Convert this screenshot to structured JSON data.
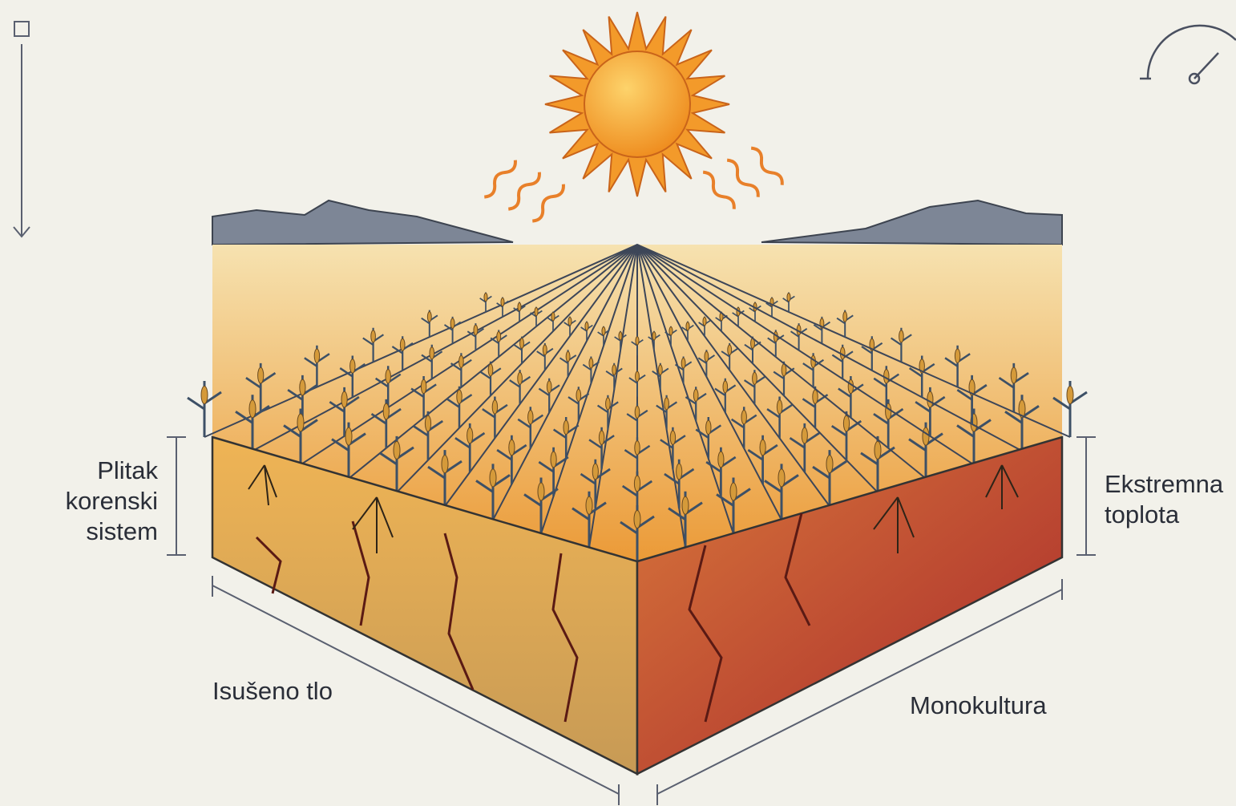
{
  "labels": {
    "shallow_roots": [
      "Plitak",
      "korenski",
      "sistem"
    ],
    "extreme_heat": [
      "Ekstremna",
      "toplota"
    ],
    "dried_soil": "Isušeno tlo",
    "monoculture": "Monokultura"
  }
}
